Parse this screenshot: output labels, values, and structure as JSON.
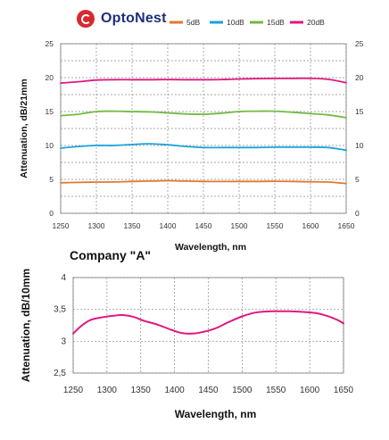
{
  "brand": {
    "name": "OptoNest",
    "logo_color": "#d9282f",
    "text_color": "#1d2f7a"
  },
  "caption": "Company \"A\"",
  "chart_data": [
    {
      "type": "line",
      "xlabel": "Wavelength, nm",
      "ylabel": "Attenuation, dB/21mm",
      "xlim": [
        1250,
        1650
      ],
      "ylim": [
        0,
        25
      ],
      "xticks": [
        1250,
        1300,
        1350,
        1400,
        1450,
        1500,
        1550,
        1600,
        1650
      ],
      "yticks": [
        0,
        5,
        10,
        15,
        20,
        25
      ],
      "grid": true,
      "legend_position": "top",
      "x": [
        1250,
        1275,
        1300,
        1325,
        1350,
        1375,
        1400,
        1425,
        1450,
        1475,
        1500,
        1525,
        1550,
        1575,
        1600,
        1625,
        1650
      ],
      "series": [
        {
          "name": "5dB",
          "color": "#e07a2e",
          "values": [
            4.5,
            4.55,
            4.6,
            4.62,
            4.7,
            4.75,
            4.8,
            4.75,
            4.7,
            4.68,
            4.7,
            4.7,
            4.72,
            4.7,
            4.65,
            4.6,
            4.4
          ]
        },
        {
          "name": "10dB",
          "color": "#1aa3dd",
          "values": [
            9.6,
            9.85,
            10.0,
            10.0,
            10.15,
            10.25,
            10.1,
            9.85,
            9.7,
            9.7,
            9.7,
            9.7,
            9.75,
            9.75,
            9.75,
            9.7,
            9.3
          ]
        },
        {
          "name": "15dB",
          "color": "#73b944",
          "values": [
            14.4,
            14.6,
            15.0,
            15.05,
            15.0,
            14.95,
            14.8,
            14.65,
            14.6,
            14.75,
            15.0,
            15.05,
            15.05,
            14.9,
            14.7,
            14.5,
            14.1
          ]
        },
        {
          "name": "20dB",
          "color": "#e0197f",
          "values": [
            19.2,
            19.4,
            19.65,
            19.7,
            19.7,
            19.7,
            19.72,
            19.7,
            19.7,
            19.72,
            19.8,
            19.85,
            19.88,
            19.9,
            19.9,
            19.75,
            19.25
          ]
        }
      ]
    },
    {
      "type": "line",
      "xlabel": "Wavelength, nm",
      "ylabel": "Attenuation, dB/10mm",
      "xlim": [
        1250,
        1650
      ],
      "ylim": [
        2.5,
        4
      ],
      "xticks": [
        1250,
        1300,
        1350,
        1400,
        1450,
        1500,
        1550,
        1600,
        1650
      ],
      "yticks": [
        2.5,
        3,
        3.5,
        4
      ],
      "ytick_labels": [
        "2,5",
        "3",
        "3,5",
        "4"
      ],
      "grid": true,
      "x": [
        1250,
        1262,
        1275,
        1290,
        1310,
        1325,
        1340,
        1355,
        1375,
        1395,
        1410,
        1425,
        1440,
        1460,
        1480,
        1500,
        1520,
        1545,
        1570,
        1590,
        1610,
        1625,
        1640,
        1650
      ],
      "series": [
        {
          "name": "",
          "color": "#e0197f",
          "values": [
            3.12,
            3.24,
            3.33,
            3.37,
            3.4,
            3.41,
            3.38,
            3.32,
            3.26,
            3.18,
            3.13,
            3.12,
            3.14,
            3.2,
            3.3,
            3.39,
            3.45,
            3.47,
            3.47,
            3.46,
            3.44,
            3.4,
            3.34,
            3.28
          ]
        }
      ]
    }
  ]
}
